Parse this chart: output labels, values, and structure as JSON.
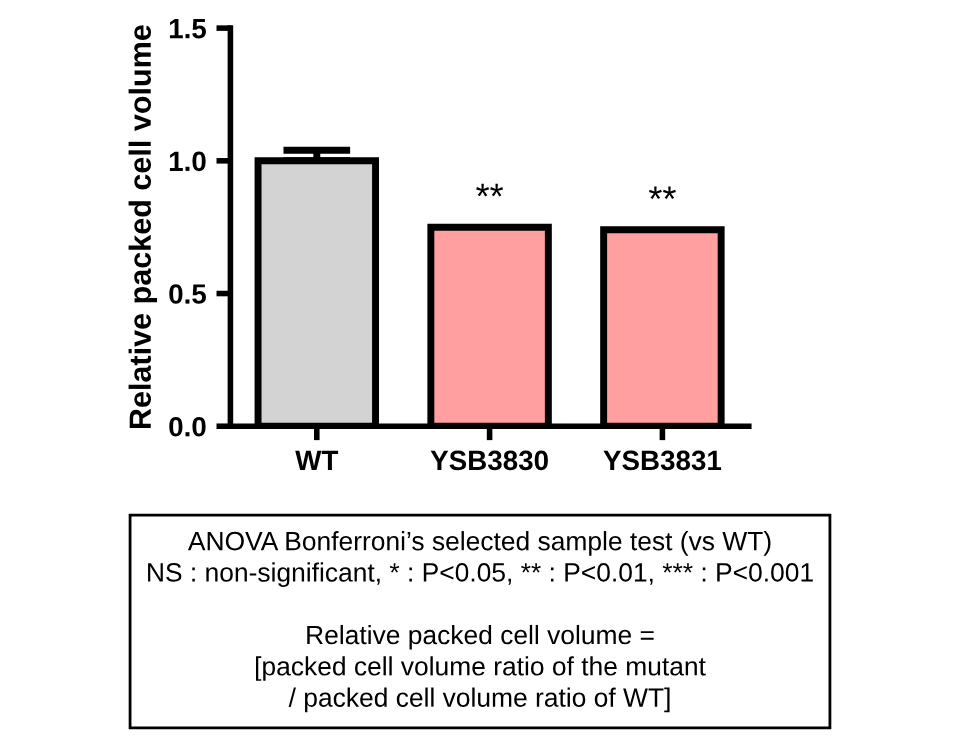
{
  "chart_data": {
    "type": "bar",
    "ylabel": "Relative packed cell volume",
    "categories": [
      "WT",
      "YSB3830",
      "YSB3831"
    ],
    "values": [
      1.0,
      0.75,
      0.74
    ],
    "colors": [
      "#d3d3d3",
      "#ff9f9f",
      "#ff9f9f"
    ],
    "errors": [
      0.04,
      null,
      null
    ],
    "ylim": [
      0,
      1.5
    ],
    "yticks": [
      {
        "value": 0,
        "label": "0.0"
      },
      {
        "value": 0.5,
        "label": "0.5"
      },
      {
        "value": 1.0,
        "label": "1.0"
      },
      {
        "value": 1.5,
        "label": "1.5"
      }
    ],
    "grid": false,
    "annotations": [
      {
        "text": "**",
        "x": "YSB3830",
        "y": 0.75
      },
      {
        "text": "**",
        "x": "YSB3831",
        "y": 0.74
      },
      "ANOVA Bonferroni’s selected sample test (vs WT)\nNS : non-significant, * : P<0.05, ** : P<0.01, *** : P<0.001\n\nRelative packed cell volume =\n[packed cell volume ratio of the mutant\n/ packed cell volume ratio of WT]"
    ]
  }
}
